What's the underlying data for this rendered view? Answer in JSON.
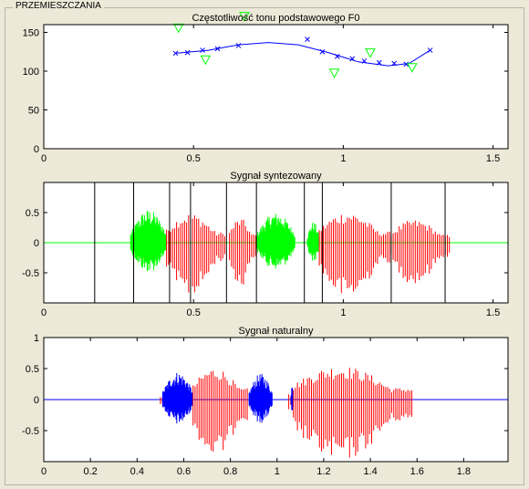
{
  "panel": {
    "title": "PRZEMIESZCZANIA"
  },
  "colors": {
    "background": "#ece9d8",
    "axes_bg": "#ffffff",
    "f0_curve": "#0000ff",
    "f0_markers_x": "#0000ff",
    "f0_markers_tri": "#00ff00",
    "voiced": "#ff0000",
    "unvoiced_synth": "#00ff00",
    "unvoiced_nat": "#0000ff",
    "boundary": "#000000"
  },
  "chart_data": [
    {
      "type": "line",
      "title": "Częstotliwość tonu podstawowego F0",
      "xlim": [
        0,
        1.55
      ],
      "ylim": [
        0,
        160
      ],
      "xticks": [
        0,
        0.5,
        1,
        1.5
      ],
      "xtick_labels": [
        "0",
        "0.5",
        "1",
        "1.5"
      ],
      "yticks": [
        0,
        50,
        100,
        150
      ],
      "ytick_labels": [
        "0",
        "50",
        "100",
        "150"
      ],
      "series": [
        {
          "marker": "line",
          "x": [
            0.44,
            0.55,
            0.65,
            0.75,
            0.85,
            0.95,
            1.05,
            1.15,
            1.22,
            1.29
          ],
          "y": [
            123,
            127,
            134,
            137,
            134,
            124,
            112,
            107,
            110,
            127
          ]
        },
        {
          "marker": "x",
          "x": [
            0.44,
            0.48,
            0.53,
            0.58,
            0.65,
            0.88,
            0.93,
            0.98,
            1.03,
            1.07,
            1.12,
            1.17,
            1.21,
            1.29
          ],
          "y": [
            123,
            124,
            127,
            129,
            133,
            141,
            125,
            119,
            116,
            113,
            111,
            110,
            109,
            127
          ]
        },
        {
          "marker": "triangle",
          "x": [
            0.45,
            0.54,
            0.67,
            0.97,
            1.09,
            1.23
          ],
          "y": [
            156,
            115,
            171,
            98,
            124,
            105
          ]
        }
      ]
    },
    {
      "type": "line",
      "title": "Sygnał syntezowany",
      "xlim": [
        0,
        1.55
      ],
      "ylim": [
        -1,
        1
      ],
      "xticks": [
        0,
        0.5,
        1,
        1.5
      ],
      "xtick_labels": [
        "0",
        "0.5",
        "1",
        "1.5"
      ],
      "yticks": [
        -0.5,
        0,
        0.5
      ],
      "ytick_labels": [
        "-0.5",
        "0",
        "0.5"
      ],
      "boundaries": [
        0.17,
        0.3,
        0.42,
        0.49,
        0.61,
        0.71,
        0.87,
        0.93,
        1.16,
        1.34
      ],
      "segments": [
        {
          "kind": "unvoiced",
          "x0": 0.29,
          "x1": 0.41,
          "amp": 0.55
        },
        {
          "kind": "voiced",
          "x0": 0.41,
          "x1": 0.61,
          "amp": 0.9
        },
        {
          "kind": "voiced",
          "x0": 0.62,
          "x1": 0.71,
          "amp": 0.75
        },
        {
          "kind": "unvoiced",
          "x0": 0.71,
          "x1": 0.84,
          "amp": 0.5
        },
        {
          "kind": "unvoiced",
          "x0": 0.88,
          "x1": 0.92,
          "amp": 0.35
        },
        {
          "kind": "voiced",
          "x0": 0.92,
          "x1": 1.16,
          "amp": 0.95
        },
        {
          "kind": "voiced",
          "x0": 1.16,
          "x1": 1.36,
          "amp": 0.7
        }
      ]
    },
    {
      "type": "line",
      "title": "Sygnał naturalny",
      "xlim": [
        0,
        1.99
      ],
      "ylim": [
        -1,
        1
      ],
      "xticks": [
        0,
        0.2,
        0.4,
        0.6,
        0.8,
        1,
        1.2,
        1.4,
        1.6,
        1.8
      ],
      "xtick_labels": [
        "0",
        "0.2",
        "0.4",
        "0.6",
        "0.8",
        "1",
        "1.2",
        "1.4",
        "1.6",
        "1.8"
      ],
      "yticks": [
        -0.5,
        0,
        0.5,
        1
      ],
      "ytick_labels": [
        "-0.5",
        "0",
        "0.5",
        "1"
      ],
      "segments": [
        {
          "kind": "voiced",
          "x0": 0.5,
          "x1": 0.51,
          "amp": 0.25
        },
        {
          "kind": "unvoiced",
          "x0": 0.51,
          "x1": 0.64,
          "amp": 0.45
        },
        {
          "kind": "voiced",
          "x0": 0.64,
          "x1": 0.88,
          "amp": 0.95
        },
        {
          "kind": "unvoiced",
          "x0": 0.88,
          "x1": 0.98,
          "amp": 0.42
        },
        {
          "kind": "voiced",
          "x0": 1.05,
          "x1": 1.06,
          "amp": 0.4
        },
        {
          "kind": "unvoiced",
          "x0": 1.06,
          "x1": 1.07,
          "amp": 0.35
        },
        {
          "kind": "voiced",
          "x0": 1.07,
          "x1": 1.58,
          "amp": 1.0
        }
      ]
    }
  ]
}
